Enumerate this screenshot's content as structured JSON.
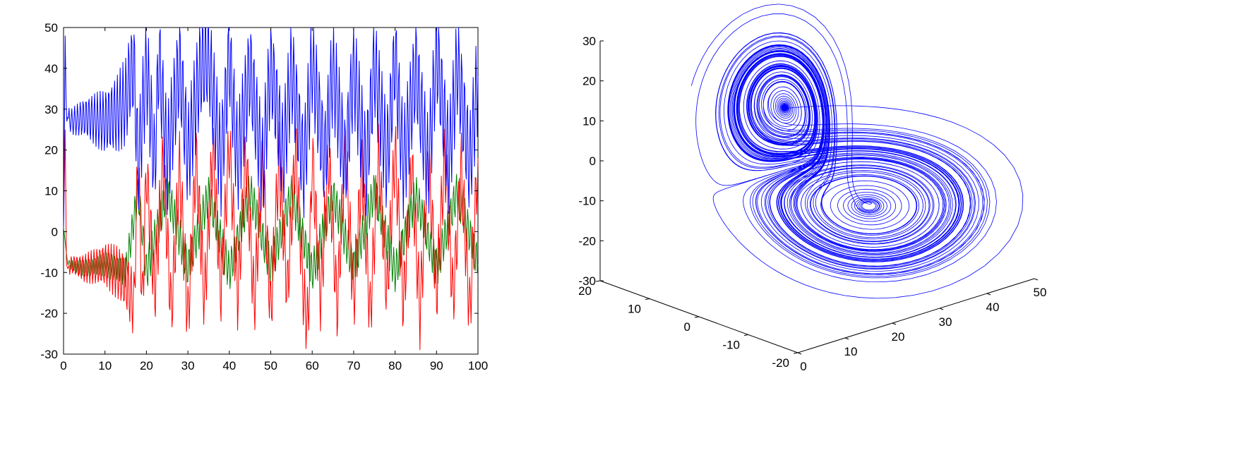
{
  "chart_data": [
    {
      "type": "line",
      "title": "",
      "xlabel": "",
      "ylabel": "",
      "xlim": [
        0,
        100
      ],
      "ylim": [
        -30,
        50
      ],
      "x_ticks": [
        0,
        10,
        20,
        30,
        40,
        50,
        60,
        70,
        80,
        90,
        100
      ],
      "y_ticks": [
        -30,
        -20,
        -10,
        0,
        10,
        20,
        30,
        40,
        50
      ],
      "grid": false,
      "legend": "none",
      "colors": {
        "z": "#0000ff",
        "x": "#ff0000",
        "y": "#008000"
      },
      "series": [
        {
          "color": "blue",
          "x": [
            0,
            0.4,
            0.6,
            0.8,
            1,
            2,
            5,
            10,
            13,
            15,
            16,
            17,
            18,
            20,
            22,
            23,
            25,
            28,
            30,
            33,
            35,
            38,
            40,
            42,
            45,
            48,
            50,
            53,
            55,
            58,
            60,
            63,
            65,
            68,
            70,
            73,
            75,
            78,
            80,
            82,
            85,
            88,
            90,
            93,
            95,
            98,
            100
          ],
          "values": [
            1,
            48,
            33,
            27,
            28,
            27,
            28,
            27,
            29,
            32,
            38,
            40,
            15,
            41,
            16,
            43,
            17,
            41,
            18,
            40,
            43,
            16,
            43,
            17,
            40,
            15,
            41,
            18,
            40,
            15,
            42,
            17,
            40,
            16,
            40,
            15,
            41,
            17,
            43,
            16,
            40,
            15,
            44,
            17,
            41,
            16,
            38
          ]
        },
        {
          "color": "red",
          "x": [
            0,
            0.4,
            0.7,
            1,
            2,
            5,
            10,
            13,
            15,
            17,
            18,
            19,
            20,
            22,
            24,
            26,
            28,
            30,
            32,
            34,
            36,
            38,
            40,
            42,
            44,
            46,
            48,
            50,
            52,
            54,
            56,
            58,
            59,
            60,
            62,
            64,
            66,
            68,
            70,
            72,
            74,
            76,
            78,
            80,
            82,
            84,
            86,
            88,
            90,
            92,
            94,
            96,
            98,
            100
          ],
          "values": [
            1,
            25,
            -8,
            -9,
            -8,
            -9,
            -8,
            -10,
            -12,
            -18,
            20,
            -19,
            15,
            -15,
            17,
            -20,
            16,
            -22,
            18,
            -17,
            20,
            -15,
            22,
            -16,
            19,
            -18,
            17,
            -20,
            18,
            -15,
            20,
            -17,
            -23,
            19,
            -16,
            18,
            -19,
            20,
            -17,
            16,
            -21,
            18,
            -15,
            20,
            -18,
            17,
            -20,
            18,
            -15,
            19,
            -17,
            16,
            -20,
            18
          ]
        },
        {
          "color": "green",
          "x": [
            0,
            1,
            5,
            10,
            15,
            18,
            20,
            25,
            30,
            35,
            40,
            45,
            50,
            55,
            60,
            65,
            70,
            75,
            80,
            85,
            90,
            95,
            100
          ],
          "values": [
            1,
            -8,
            -9,
            -8,
            -10,
            10,
            -10,
            10,
            -9,
            9,
            -10,
            10,
            -9,
            9,
            -10,
            9,
            -9,
            10,
            -10,
            9,
            -9,
            10,
            -8
          ]
        }
      ]
    },
    {
      "type": "line",
      "title": "",
      "xlabel": "",
      "ylabel": "",
      "zlabel": "",
      "xlim": [
        0,
        50
      ],
      "ylim": [
        -20,
        20
      ],
      "zlim": [
        -30,
        30
      ],
      "x_ticks": [
        0,
        10,
        20,
        30,
        40,
        50
      ],
      "y_ticks": [
        -20,
        -10,
        0,
        10,
        20
      ],
      "z_ticks": [
        -30,
        -20,
        -10,
        0,
        10,
        20,
        30
      ],
      "grid": false,
      "legend": "none",
      "colors": {
        "trajectory": "#0000ff"
      },
      "series": []
    }
  ]
}
